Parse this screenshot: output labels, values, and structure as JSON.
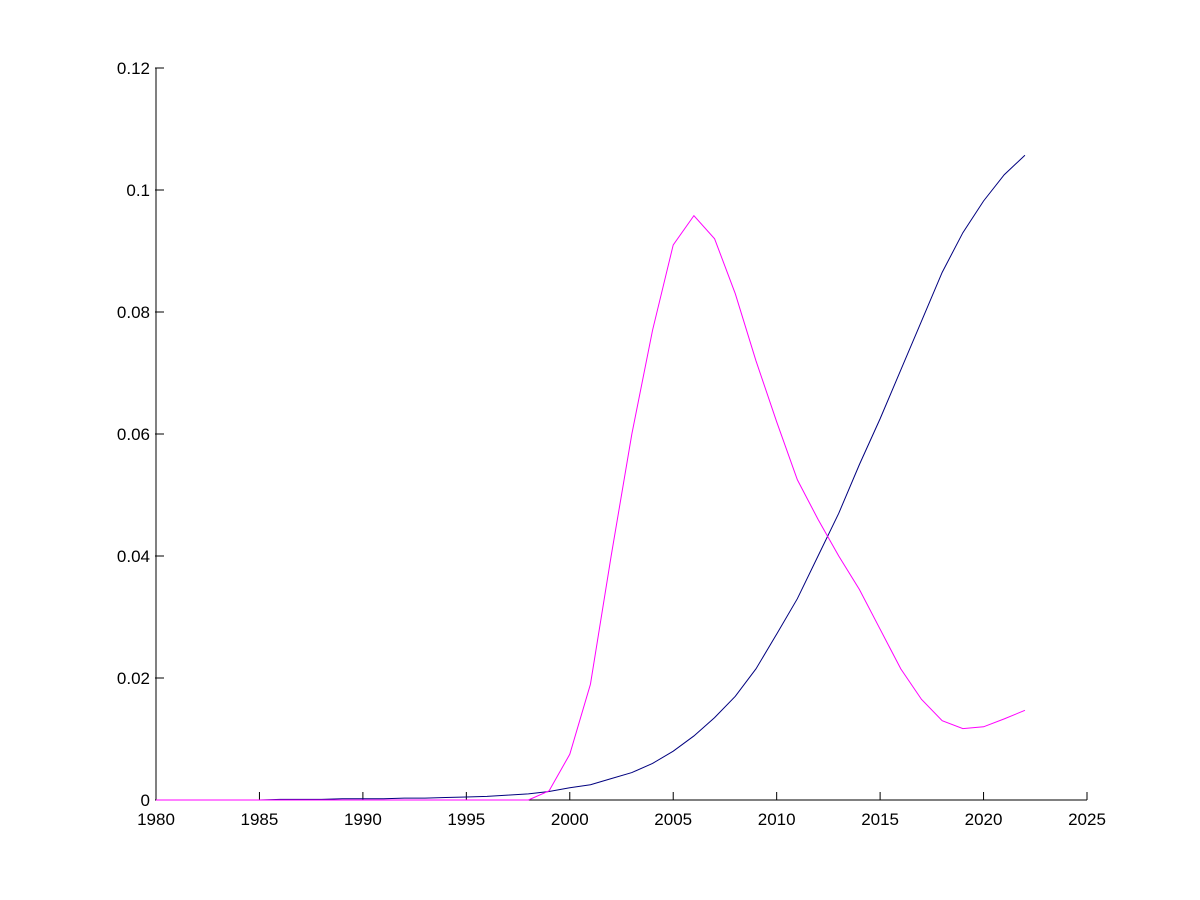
{
  "chart_data": {
    "type": "line",
    "x": [
      1980,
      1981,
      1982,
      1983,
      1984,
      1985,
      1986,
      1987,
      1988,
      1989,
      1990,
      1991,
      1992,
      1993,
      1994,
      1995,
      1996,
      1997,
      1998,
      1999,
      2000,
      2001,
      2002,
      2003,
      2004,
      2005,
      2006,
      2007,
      2008,
      2009,
      2010,
      2011,
      2012,
      2013,
      2014,
      2015,
      2016,
      2017,
      2018,
      2019,
      2020,
      2021,
      2022
    ],
    "series": [
      {
        "color": "#00007f",
        "values": [
          0,
          0,
          0,
          0,
          0,
          0,
          0.0001,
          0.0001,
          0.0001,
          0.0002,
          0.0002,
          0.0002,
          0.0003,
          0.0003,
          0.0004,
          0.0005,
          0.0006,
          0.0008,
          0.001,
          0.0014,
          0.002,
          0.0025,
          0.0035,
          0.0045,
          0.006,
          0.008,
          0.0105,
          0.0135,
          0.017,
          0.0215,
          0.0272,
          0.033,
          0.04,
          0.047,
          0.055,
          0.0625,
          0.0705,
          0.0785,
          0.0865,
          0.093,
          0.0982,
          0.1025,
          0.1057
        ]
      },
      {
        "color": "#ff00ff",
        "values": [
          0,
          0,
          0,
          0,
          0,
          0,
          0,
          0,
          0,
          0,
          0,
          0,
          0,
          0,
          0,
          0,
          0,
          0,
          0,
          0.0015,
          0.0075,
          0.019,
          0.04,
          0.06,
          0.077,
          0.091,
          0.0958,
          0.092,
          0.083,
          0.072,
          0.062,
          0.0525,
          0.046,
          0.04,
          0.0345,
          0.028,
          0.0215,
          0.0165,
          0.013,
          0.0117,
          0.012,
          0.0133,
          0.0147
        ]
      }
    ],
    "xlim": [
      1980,
      2025
    ],
    "xticks": [
      1980,
      1985,
      1990,
      1995,
      2000,
      2005,
      2010,
      2015,
      2020,
      2025
    ],
    "ylim": [
      0,
      0.12
    ],
    "yticks": [
      0,
      0.02,
      0.04,
      0.06,
      0.08,
      0.1,
      0.12
    ]
  }
}
